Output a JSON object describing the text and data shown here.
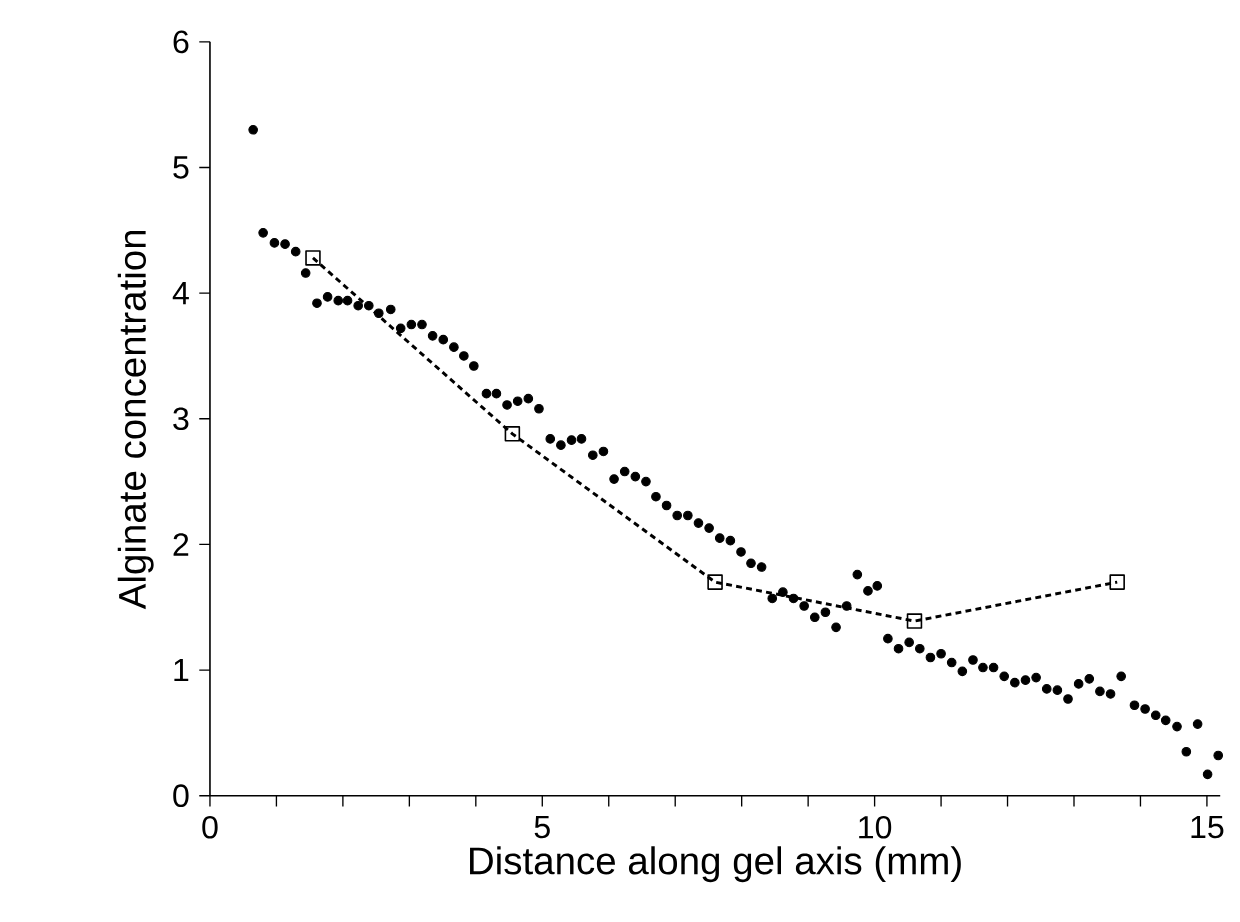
{
  "chart_data": {
    "type": "scatter",
    "xlabel": "Distance along gel axis (mm)",
    "ylabel": "Alginate concentration",
    "xlim": [
      0,
      15.2
    ],
    "ylim": [
      0,
      6
    ],
    "xticks": [
      0,
      {
        "value": 1,
        "label": null
      },
      {
        "value": 2,
        "label": null
      },
      {
        "value": 3,
        "label": null
      },
      {
        "value": 4,
        "label": null
      },
      5,
      {
        "value": 6,
        "label": null
      },
      {
        "value": 7,
        "label": null
      },
      {
        "value": 8,
        "label": null
      },
      {
        "value": 9,
        "label": null
      },
      10,
      {
        "value": 11,
        "label": null
      },
      {
        "value": 12,
        "label": null
      },
      {
        "value": 13,
        "label": null
      },
      {
        "value": 14,
        "label": null
      },
      15
    ],
    "yticks": [
      0,
      1,
      2,
      3,
      4,
      5,
      6
    ],
    "grid": false,
    "series": [
      {
        "marker": "circle",
        "color": "#000000",
        "x": [
          0.65,
          0.8,
          0.97,
          1.13,
          1.29,
          1.44,
          1.61,
          1.77,
          1.93,
          2.07,
          2.23,
          2.39,
          2.54,
          2.72,
          2.87,
          3.03,
          3.19,
          3.35,
          3.51,
          3.67,
          3.82,
          3.97,
          4.16,
          4.31,
          4.47,
          4.63,
          4.79,
          4.95,
          5.12,
          5.28,
          5.44,
          5.59,
          5.76,
          5.92,
          6.08,
          6.24,
          6.4,
          6.56,
          6.71,
          6.87,
          7.03,
          7.19,
          7.35,
          7.51,
          7.67,
          7.83,
          7.99,
          8.14,
          8.3,
          8.46,
          8.62,
          8.78,
          8.94,
          9.1,
          9.26,
          9.42,
          9.58,
          9.74,
          9.9,
          10.04,
          10.2,
          10.36,
          10.52,
          10.68,
          10.84,
          11.0,
          11.16,
          11.32,
          11.48,
          11.63,
          11.79,
          11.95,
          12.11,
          12.27,
          12.43,
          12.59,
          12.75,
          12.91,
          13.07,
          13.23,
          13.39,
          13.55,
          13.71,
          13.91,
          14.07,
          14.23,
          14.38,
          14.55,
          14.69,
          14.86,
          15.01,
          15.17
        ],
        "values": [
          5.3,
          4.48,
          4.4,
          4.39,
          4.33,
          4.16,
          3.92,
          3.97,
          3.94,
          3.94,
          3.9,
          3.9,
          3.84,
          3.87,
          3.72,
          3.75,
          3.75,
          3.66,
          3.63,
          3.57,
          3.5,
          3.42,
          3.2,
          3.2,
          3.11,
          3.14,
          3.16,
          3.08,
          2.84,
          2.79,
          2.83,
          2.84,
          2.71,
          2.74,
          2.52,
          2.58,
          2.54,
          2.5,
          2.38,
          2.31,
          2.23,
          2.23,
          2.17,
          2.13,
          2.05,
          2.03,
          1.94,
          1.85,
          1.82,
          1.57,
          1.62,
          1.57,
          1.51,
          1.42,
          1.46,
          1.34,
          1.51,
          1.76,
          1.63,
          1.67,
          1.25,
          1.17,
          1.22,
          1.17,
          1.1,
          1.13,
          1.06,
          0.99,
          1.08,
          1.02,
          1.02,
          0.95,
          0.9,
          0.92,
          0.94,
          0.85,
          0.84,
          0.77,
          0.89,
          0.93,
          0.83,
          0.81,
          0.95,
          0.72,
          0.69,
          0.64,
          0.6,
          0.55,
          0.35,
          0.57,
          0.17,
          0.32
        ]
      },
      {
        "type": "line",
        "marker": "square",
        "line_style": "dashed",
        "color": "#000000",
        "x": [
          1.55,
          4.55,
          7.6,
          10.6,
          13.65
        ],
        "values": [
          4.28,
          2.88,
          1.7,
          1.39,
          1.7
        ]
      }
    ]
  }
}
